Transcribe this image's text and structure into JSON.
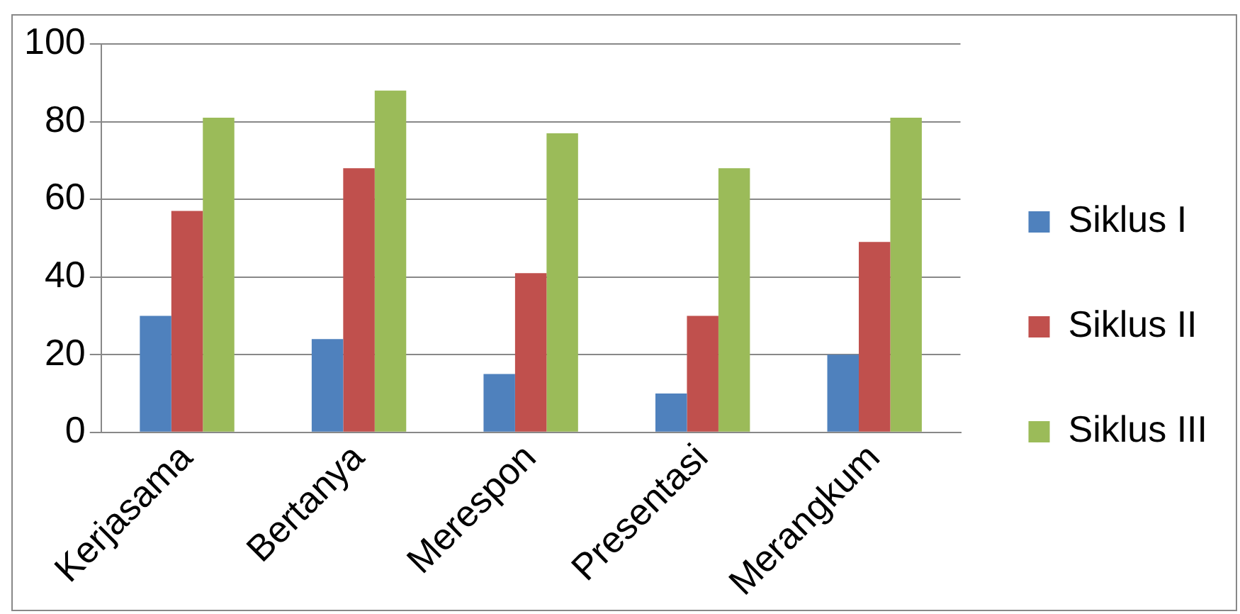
{
  "chart_data": {
    "type": "bar",
    "categories": [
      "Kerjasama",
      "Bertanya",
      "Merespon",
      "Presentasi",
      "Merangkum"
    ],
    "series": [
      {
        "name": "Siklus I",
        "color": "#4f81bd",
        "values": [
          30,
          24,
          15,
          10,
          20
        ]
      },
      {
        "name": "Siklus II",
        "color": "#c0504d",
        "values": [
          57,
          68,
          41,
          30,
          49
        ]
      },
      {
        "name": "Siklus III",
        "color": "#9bbb59",
        "values": [
          81,
          88,
          77,
          68,
          81
        ]
      }
    ],
    "ylim": [
      0,
      100
    ],
    "yticks": [
      0,
      20,
      40,
      60,
      80,
      100
    ],
    "grid": "y",
    "legend": "right"
  }
}
